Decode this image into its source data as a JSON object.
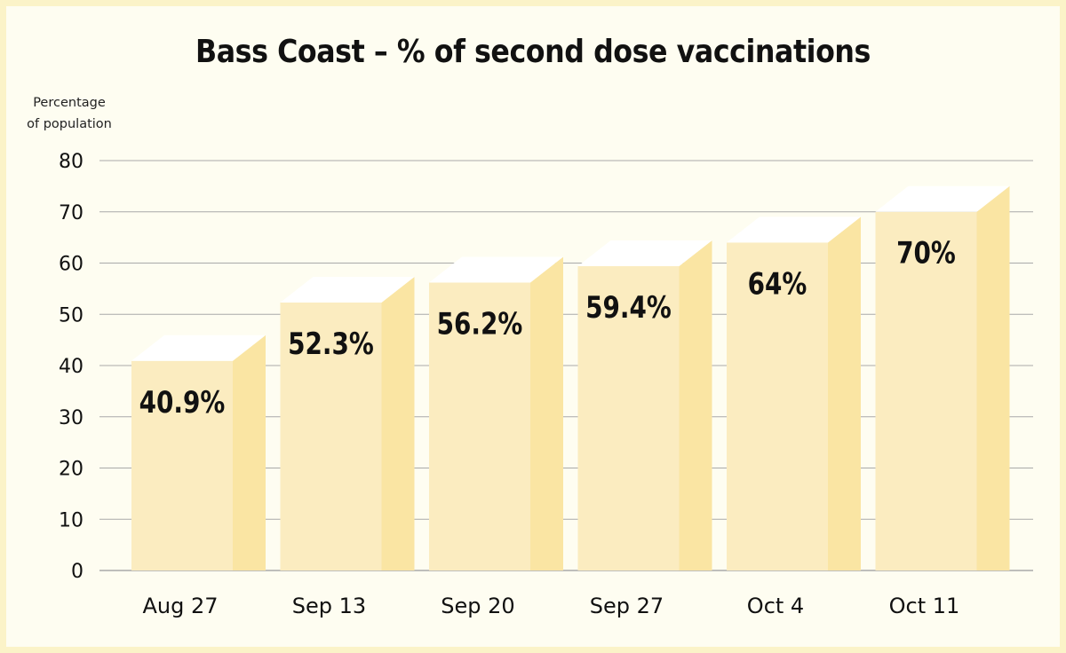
{
  "chart_data": {
    "type": "bar",
    "title": "Bass Coast – % of second dose vaccinations",
    "xlabel": "",
    "ylabel": "Percentage of population",
    "ylabel_lines": [
      "Percentage",
      "of population"
    ],
    "categories": [
      "Aug 27",
      "Sep 13",
      "Sep 20",
      "Sep 27",
      "Oct 4",
      "Oct 11"
    ],
    "values": [
      40.9,
      52.3,
      56.2,
      59.4,
      64,
      70
    ],
    "data_labels": [
      "40.9%",
      "52.3%",
      "56.2%",
      "59.4%",
      "64%",
      "70%"
    ],
    "ylim": [
      0,
      80
    ],
    "yticks": [
      0,
      10,
      20,
      30,
      40,
      50,
      60,
      70,
      80
    ],
    "grid": true,
    "style": "3d-bar",
    "colors": {
      "page_border": "#fbf3c8",
      "background": "#fefdf1",
      "bar_front": "#fbecc0",
      "bar_side": "#fae5a3",
      "bar_top": "#ffffff",
      "grid": "#a9a9a9",
      "text": "#111111"
    }
  }
}
